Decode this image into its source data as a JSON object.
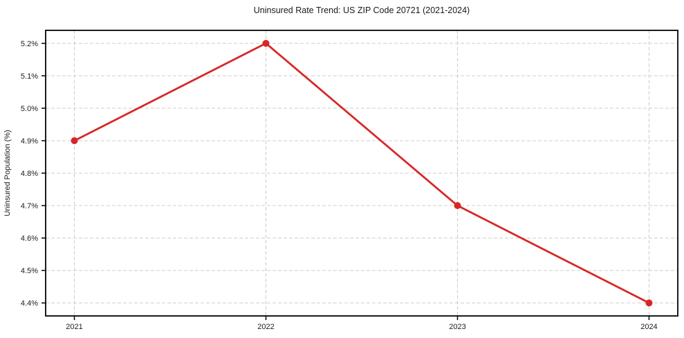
{
  "chart_data": {
    "type": "line",
    "title": "Uninsured Rate Trend: US ZIP Code 20721 (2021-2024)",
    "xlabel": "",
    "ylabel": "Uninsured Population (%)",
    "x": [
      2021,
      2022,
      2023,
      2024
    ],
    "values": [
      4.9,
      5.2,
      4.7,
      4.4
    ],
    "series_name": "Uninsured rate",
    "x_tick_labels": [
      "2021",
      "2022",
      "2023",
      "2024"
    ],
    "y_ticks": [
      4.4,
      4.5,
      4.6,
      4.7,
      4.8,
      4.9,
      5.0,
      5.1,
      5.2
    ],
    "y_tick_labels": [
      "4.4%",
      "4.5%",
      "4.6%",
      "4.7%",
      "4.8%",
      "4.9%",
      "5.0%",
      "5.1%",
      "5.2%"
    ],
    "xlim": [
      2020.85,
      2024.15
    ],
    "ylim": [
      4.36,
      5.24
    ],
    "grid": true,
    "grid_style": "dashed",
    "legend_position": "none",
    "line_color": "#d62728",
    "marker": "circle",
    "grid_color": "#cccccc",
    "axis_color": "#000000",
    "text_color": "#1a1a1a",
    "background_color": "#ffffff"
  }
}
